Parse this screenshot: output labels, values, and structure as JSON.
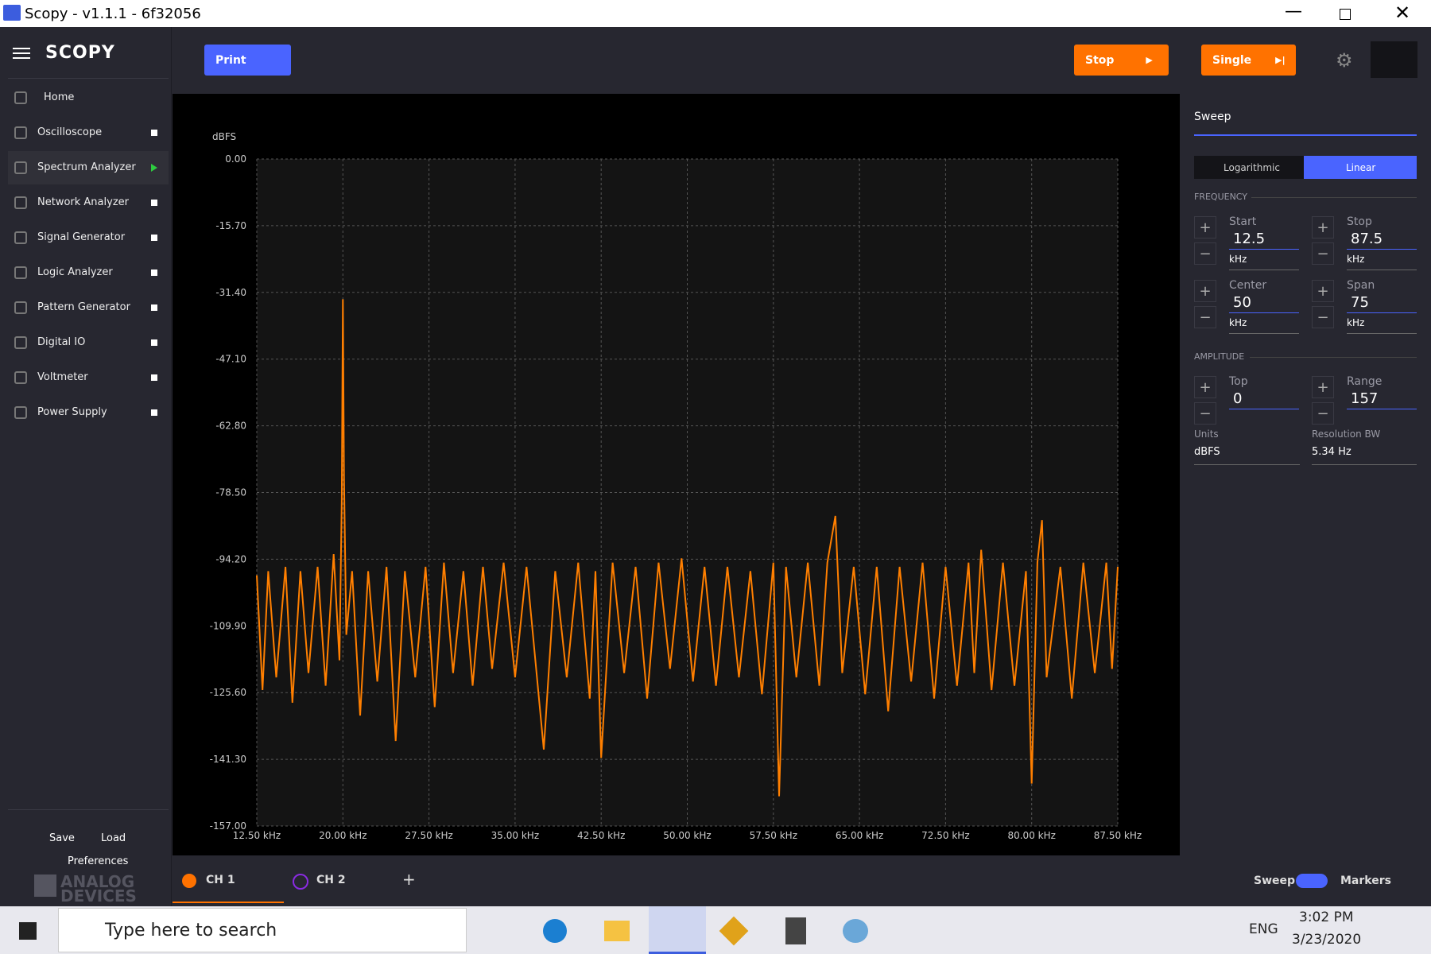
{
  "window": {
    "title": "Scopy - v1.1.1 - 6f32056"
  },
  "sidebar": {
    "logo": "SCOPY",
    "items": [
      "Home",
      "Oscilloscope",
      "Spectrum Analyzer",
      "Network Analyzer",
      "Signal Generator",
      "Logic Analyzer",
      "Pattern Generator",
      "Digital IO",
      "Voltmeter",
      "Power Supply"
    ],
    "save": "Save",
    "load": "Load",
    "preferences": "Preferences",
    "brand": [
      "ANALOG",
      "DEVICES"
    ]
  },
  "toolbar": {
    "print": "Print",
    "stop": "Stop",
    "single": "Single"
  },
  "chart_data": {
    "type": "line",
    "y_label": "dBFS",
    "xlim": [
      12.5,
      87.5
    ],
    "xticks": [
      {
        "value": 12.5,
        "label": "12.50 kHz"
      },
      {
        "value": 20,
        "label": "20.00 kHz"
      },
      {
        "value": 27.5,
        "label": "27.50 kHz"
      },
      {
        "value": 35,
        "label": "35.00 kHz"
      },
      {
        "value": 42.5,
        "label": "42.50 kHz"
      },
      {
        "value": 50,
        "label": "50.00 kHz"
      },
      {
        "value": 57.5,
        "label": "57.50 kHz"
      },
      {
        "value": 65,
        "label": "65.00 kHz"
      },
      {
        "value": 72.5,
        "label": "72.50 kHz"
      },
      {
        "value": 80,
        "label": "80.00 kHz"
      },
      {
        "value": 87.5,
        "label": "87.50 kHz"
      }
    ],
    "ylim": [
      -157,
      0
    ],
    "yticks": [
      {
        "value": 0,
        "label": "0.00"
      },
      {
        "value": -15.7,
        "label": "-15.70"
      },
      {
        "value": -31.4,
        "label": "-31.40"
      },
      {
        "value": -47.1,
        "label": "-47.10"
      },
      {
        "value": -62.8,
        "label": "-62.80"
      },
      {
        "value": -78.5,
        "label": "-78.50"
      },
      {
        "value": -94.2,
        "label": "-94.20"
      },
      {
        "value": -109.9,
        "label": "-109.90"
      },
      {
        "value": -125.6,
        "label": "-125.60"
      },
      {
        "value": -141.3,
        "label": "-141.30"
      },
      {
        "value": -157,
        "label": "-157.00"
      }
    ],
    "grid": true,
    "x": [
      12.5,
      13.0,
      13.5,
      14.2,
      15.0,
      15.6,
      16.3,
      17.0,
      17.8,
      18.5,
      19.2,
      19.7,
      19.9,
      20.0,
      20.1,
      20.3,
      20.8,
      21.5,
      22.2,
      23.0,
      23.8,
      24.6,
      25.4,
      26.3,
      27.2,
      28.0,
      28.8,
      29.6,
      30.5,
      31.3,
      32.2,
      33.0,
      34.0,
      35.0,
      36.0,
      37.5,
      38.5,
      39.5,
      40.5,
      41.5,
      42.0,
      42.5,
      43.5,
      44.5,
      45.5,
      46.5,
      47.5,
      48.5,
      49.5,
      50.5,
      51.5,
      52.5,
      53.5,
      54.5,
      55.5,
      56.5,
      57.5,
      58.0,
      58.6,
      59.5,
      60.5,
      61.5,
      62.2,
      62.9,
      63.5,
      64.5,
      65.5,
      66.5,
      67.5,
      68.5,
      69.5,
      70.5,
      71.5,
      72.5,
      73.5,
      74.5,
      75.0,
      75.6,
      76.5,
      77.5,
      78.5,
      79.5,
      80.0,
      80.5,
      80.9,
      81.3,
      82.5,
      83.5,
      84.5,
      85.5,
      86.5,
      87.0,
      87.5
    ],
    "series": [
      {
        "name": "CH 1",
        "color": "#ff7f00",
        "values": [
          -98,
          -125,
          -97,
          -122,
          -96,
          -128,
          -97,
          -121,
          -96,
          -124,
          -93,
          -118,
          -80,
          -33,
          -75,
          -112,
          -97,
          -131,
          -97,
          -123,
          -96,
          -137,
          -97,
          -122,
          -96,
          -129,
          -95,
          -121,
          -97,
          -124,
          -96,
          -120,
          -95,
          -122,
          -96,
          -139,
          -97,
          -122,
          -95,
          -127,
          -97,
          -141,
          -95,
          -121,
          -96,
          -127,
          -95,
          -120,
          -94,
          -123,
          -96,
          -124,
          -96,
          -122,
          -97,
          -126,
          -95,
          -150,
          -96,
          -122,
          -95,
          -124,
          -95,
          -84,
          -121,
          -96,
          -126,
          -96,
          -130,
          -96,
          -123,
          -95,
          -127,
          -96,
          -124,
          -95,
          -121,
          -92,
          -125,
          -95,
          -124,
          -97,
          -147,
          -95,
          -85,
          -122,
          -96,
          -127,
          -95,
          -121,
          -95,
          -120,
          -96
        ]
      }
    ]
  },
  "channels": [
    "CH 1",
    "CH 2"
  ],
  "sweep": {
    "title": "Sweep",
    "scale_options": [
      "Logarithmic",
      "Linear"
    ],
    "frequency_header": "FREQUENCY",
    "start": {
      "label": "Start",
      "value": 12.5,
      "unit": "kHz"
    },
    "stop": {
      "label": "Stop",
      "value": 87.5,
      "unit": "kHz"
    },
    "center": {
      "label": "Center",
      "value": 50,
      "unit": "kHz"
    },
    "span": {
      "label": "Span",
      "value": 75,
      "unit": "kHz"
    },
    "amplitude_header": "AMPLITUDE",
    "top": {
      "label": "Top",
      "value": 0
    },
    "range": {
      "label": "Range",
      "value": 157
    },
    "units": {
      "label": "Units",
      "value": "dBFS"
    },
    "resolution_bw": {
      "label": "Resolution BW",
      "value": "5.34 Hz"
    }
  },
  "bottom_bar": {
    "sweep": "Sweep",
    "markers": "Markers"
  },
  "taskbar": {
    "search": "Type here to search",
    "language": "ENG",
    "time": "3:02 PM",
    "date": "3/23/2020"
  }
}
